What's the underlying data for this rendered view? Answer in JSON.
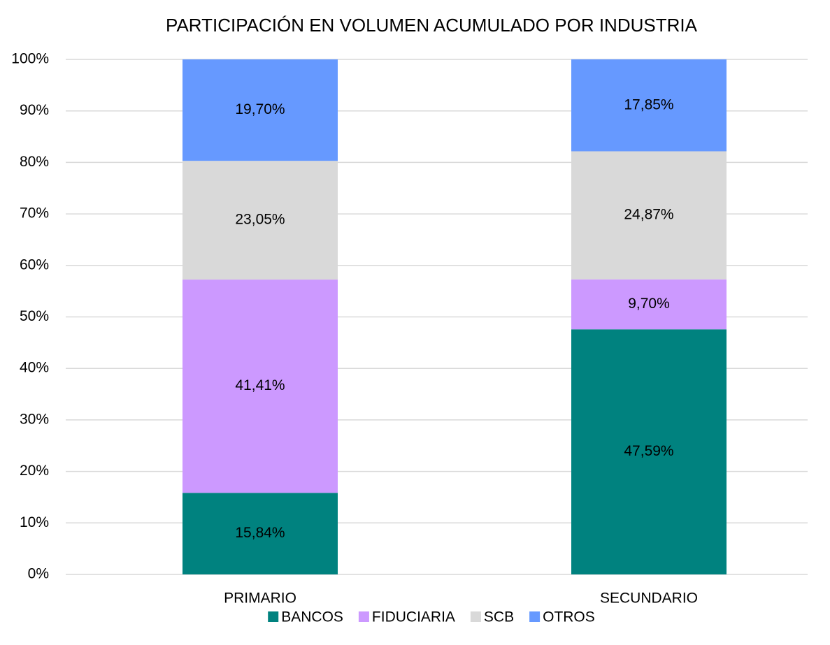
{
  "chart_data": {
    "type": "stacked_bar",
    "title": "PARTICIPACIÓN EN VOLUMEN ACUMULADO POR INDUSTRIA",
    "categories": [
      "PRIMARIO",
      "SECUNDARIO"
    ],
    "series": [
      {
        "name": "BANCOS",
        "color": "#00827f",
        "values": [
          15.84,
          47.59
        ],
        "value_labels": [
          "15,84%",
          "47,59%"
        ]
      },
      {
        "name": "FIDUCIARIA",
        "color": "#cc99ff",
        "values": [
          41.41,
          9.7
        ],
        "value_labels": [
          "41,41%",
          "9,70%"
        ]
      },
      {
        "name": "SCB",
        "color": "#d9d9d9",
        "values": [
          23.05,
          24.87
        ],
        "value_labels": [
          "23,05%",
          "24,87%"
        ]
      },
      {
        "name": "OTROS",
        "color": "#6699ff",
        "values": [
          19.7,
          17.85
        ],
        "value_labels": [
          "19,70%",
          "17,85%"
        ]
      }
    ],
    "ylim": [
      0,
      100
    ],
    "yticks": [
      {
        "value": 0,
        "label": "0%"
      },
      {
        "value": 10,
        "label": "10%"
      },
      {
        "value": 20,
        "label": "20%"
      },
      {
        "value": 30,
        "label": "30%"
      },
      {
        "value": 40,
        "label": "40%"
      },
      {
        "value": 50,
        "label": "50%"
      },
      {
        "value": 60,
        "label": "60%"
      },
      {
        "value": 70,
        "label": "70%"
      },
      {
        "value": 80,
        "label": "80%"
      },
      {
        "value": 90,
        "label": "90%"
      },
      {
        "value": 100,
        "label": "100%"
      }
    ],
    "grid": true,
    "legend": "bottom"
  }
}
